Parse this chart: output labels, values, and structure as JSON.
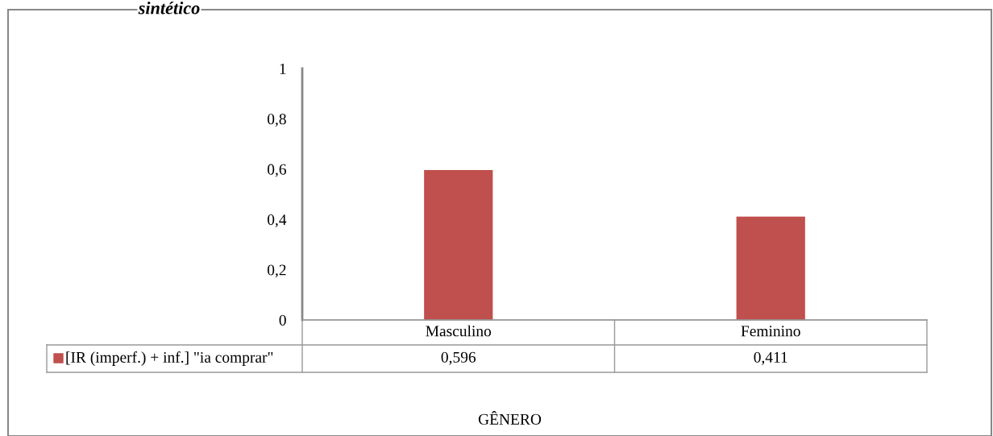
{
  "chart_data": {
    "type": "bar",
    "title": "sintético",
    "xlabel": "GÊNERO",
    "categories": [
      "Masculino",
      "Feminino"
    ],
    "series": [
      {
        "name": "[IR (imperf.) + inf.] \"ia comprar\"",
        "color": "#c0504d",
        "values": [
          0.596,
          0.411
        ],
        "value_labels": [
          "0,596",
          "0,411"
        ]
      }
    ],
    "ylim": [
      0,
      1
    ],
    "yticks": [
      0,
      {
        "value": 0.2,
        "label": "0,2"
      },
      {
        "value": 0.4,
        "label": "0,4"
      },
      {
        "value": 0.6,
        "label": "0,6"
      },
      {
        "value": 0.8,
        "label": "0,8"
      },
      1
    ],
    "grid": false
  }
}
